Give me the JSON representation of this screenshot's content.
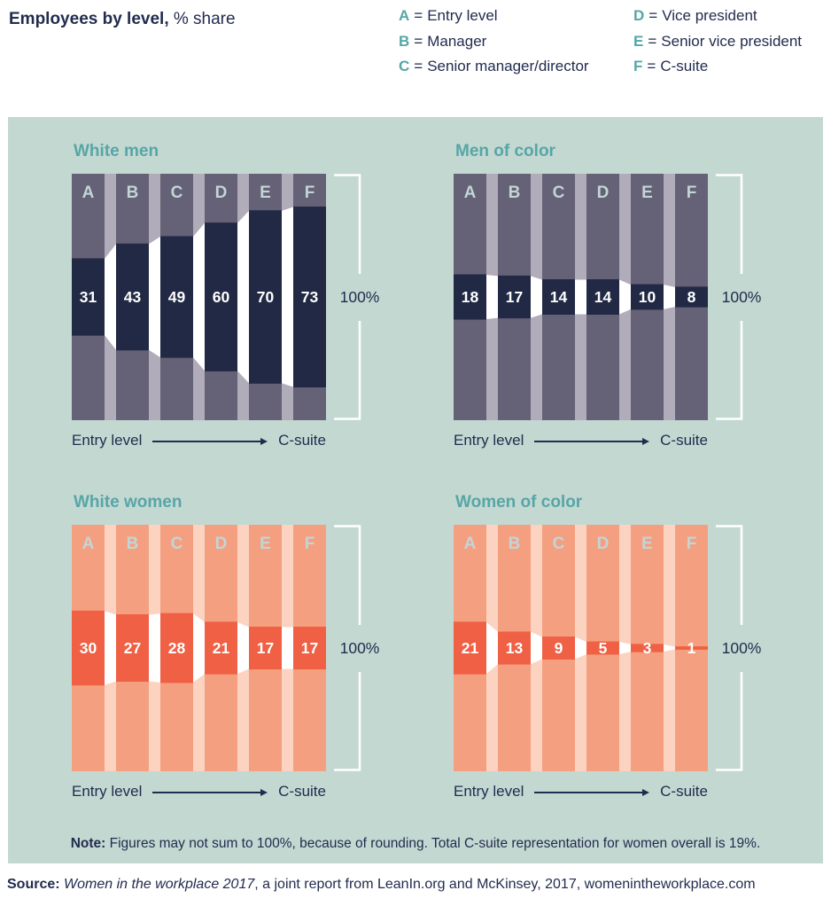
{
  "header": {
    "title_bold": "Employees by level,",
    "title_rest": " % share"
  },
  "legend": {
    "separator": "=",
    "items": [
      {
        "key": "A",
        "label": "Entry level"
      },
      {
        "key": "B",
        "label": "Manager"
      },
      {
        "key": "C",
        "label": "Senior manager/director"
      },
      {
        "key": "D",
        "label": "Vice president"
      },
      {
        "key": "E",
        "label": "Senior vice president"
      },
      {
        "key": "F",
        "label": "C-suite"
      }
    ]
  },
  "chart_data": {
    "type": "bar",
    "variant": "centered-band-funnel",
    "categories": [
      "A",
      "B",
      "C",
      "D",
      "E",
      "F"
    ],
    "series": [
      {
        "name": "White men",
        "palette": "men",
        "values": [
          31,
          43,
          49,
          60,
          70,
          73
        ]
      },
      {
        "name": "Men of color",
        "palette": "men",
        "values": [
          18,
          17,
          14,
          14,
          10,
          8
        ]
      },
      {
        "name": "White women",
        "palette": "women",
        "values": [
          30,
          27,
          28,
          21,
          17,
          17
        ]
      },
      {
        "name": "Women of color",
        "palette": "women",
        "values": [
          21,
          13,
          9,
          5,
          3,
          1
        ]
      }
    ],
    "axis": {
      "left_label": "Entry level",
      "right_label": "C-suite",
      "bracket_label": "100%"
    },
    "ylim": [
      0,
      100
    ],
    "legend_position": "top-right",
    "grid": false
  },
  "colors": {
    "page_bg": "#ffffff",
    "panel_bg": "#c4d8d2",
    "text_navy": "#222c4e",
    "teal": "#56a6a6",
    "men_bar": "#656176",
    "men_gap": "#b0acba",
    "men_band": "#212944",
    "women_bar": "#f4a080",
    "women_gap": "#fcd3c1",
    "women_band": "#ef6044",
    "letter": "#c3d5d6",
    "value_label": "#ffffff",
    "bracket": "#ffffff"
  },
  "note": {
    "bold": "Note:",
    "text": " Figures may not sum to 100%, because of rounding. Total C-suite representation for women overall is 19%."
  },
  "source": {
    "bold": "Source:",
    "italic": " Women in the workplace 2017",
    "rest": ", a joint report from LeanIn.org and McKinsey, 2017, womenintheworkplace.com"
  }
}
